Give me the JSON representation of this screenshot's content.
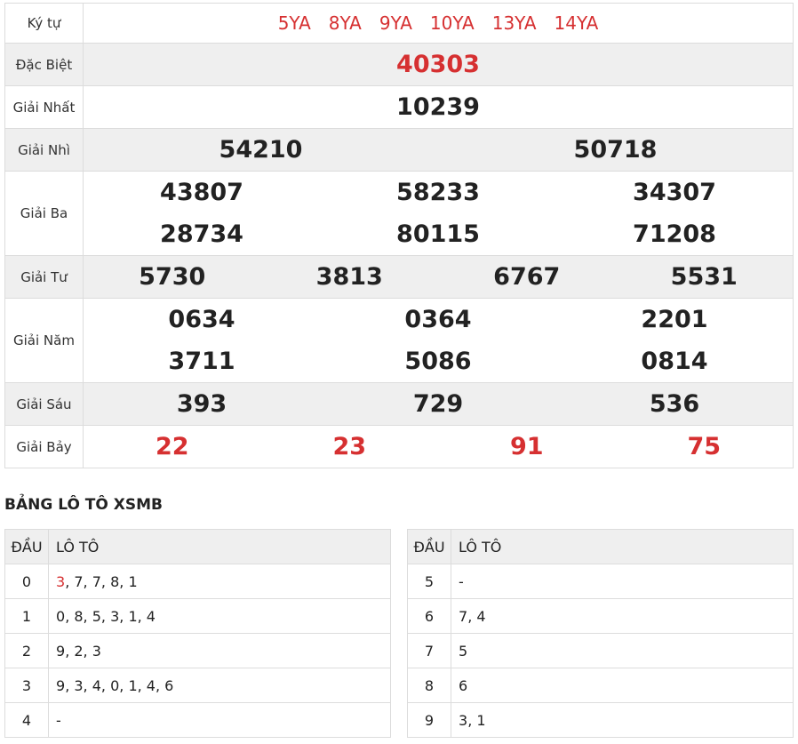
{
  "results": {
    "ky_tu_label": "Ký tự",
    "codes": [
      "5YA",
      "8YA",
      "9YA",
      "10YA",
      "13YA",
      "14YA"
    ],
    "rows": [
      {
        "label": "Đặc Biệt",
        "numbers": [
          [
            "40303"
          ]
        ],
        "red": true,
        "shade": true
      },
      {
        "label": "Giải Nhất",
        "numbers": [
          [
            "10239"
          ]
        ],
        "red": false,
        "shade": false
      },
      {
        "label": "Giải Nhì",
        "numbers": [
          [
            "54210",
            "50718"
          ]
        ],
        "red": false,
        "shade": true
      },
      {
        "label": "Giải Ba",
        "numbers": [
          [
            "43807",
            "58233",
            "34307"
          ],
          [
            "28734",
            "80115",
            "71208"
          ]
        ],
        "red": false,
        "shade": false
      },
      {
        "label": "Giải Tư",
        "numbers": [
          [
            "5730",
            "3813",
            "6767",
            "5531"
          ]
        ],
        "red": false,
        "shade": true
      },
      {
        "label": "Giải Năm",
        "numbers": [
          [
            "0634",
            "0364",
            "2201"
          ],
          [
            "3711",
            "5086",
            "0814"
          ]
        ],
        "red": false,
        "shade": false
      },
      {
        "label": "Giải Sáu",
        "numbers": [
          [
            "393",
            "729",
            "536"
          ]
        ],
        "red": false,
        "shade": true
      },
      {
        "label": "Giải Bảy",
        "numbers": [
          [
            "22",
            "23",
            "91",
            "75"
          ]
        ],
        "red": true,
        "shade": false
      }
    ]
  },
  "loto": {
    "title": "BẢNG LÔ TÔ XSMB",
    "head_dau": "ĐẦU",
    "head_loto": "LÔ TÔ",
    "left": [
      {
        "dau": "0",
        "items": [
          "3",
          "7",
          "7",
          "8",
          "1"
        ],
        "red_index": 0
      },
      {
        "dau": "1",
        "items": [
          "0",
          "8",
          "5",
          "3",
          "1",
          "4"
        ],
        "red_index": -1
      },
      {
        "dau": "2",
        "items": [
          "9",
          "2",
          "3"
        ],
        "red_index": -1
      },
      {
        "dau": "3",
        "items": [
          "9",
          "3",
          "4",
          "0",
          "1",
          "4",
          "6"
        ],
        "red_index": -1
      },
      {
        "dau": "4",
        "items": [
          "-"
        ],
        "red_index": -1
      }
    ],
    "right": [
      {
        "dau": "5",
        "items": [
          "-"
        ],
        "red_index": -1
      },
      {
        "dau": "6",
        "items": [
          "7",
          "4"
        ],
        "red_index": -1
      },
      {
        "dau": "7",
        "items": [
          "5"
        ],
        "red_index": -1
      },
      {
        "dau": "8",
        "items": [
          "6"
        ],
        "red_index": -1
      },
      {
        "dau": "9",
        "items": [
          "3",
          "1"
        ],
        "red_index": -1
      }
    ]
  }
}
